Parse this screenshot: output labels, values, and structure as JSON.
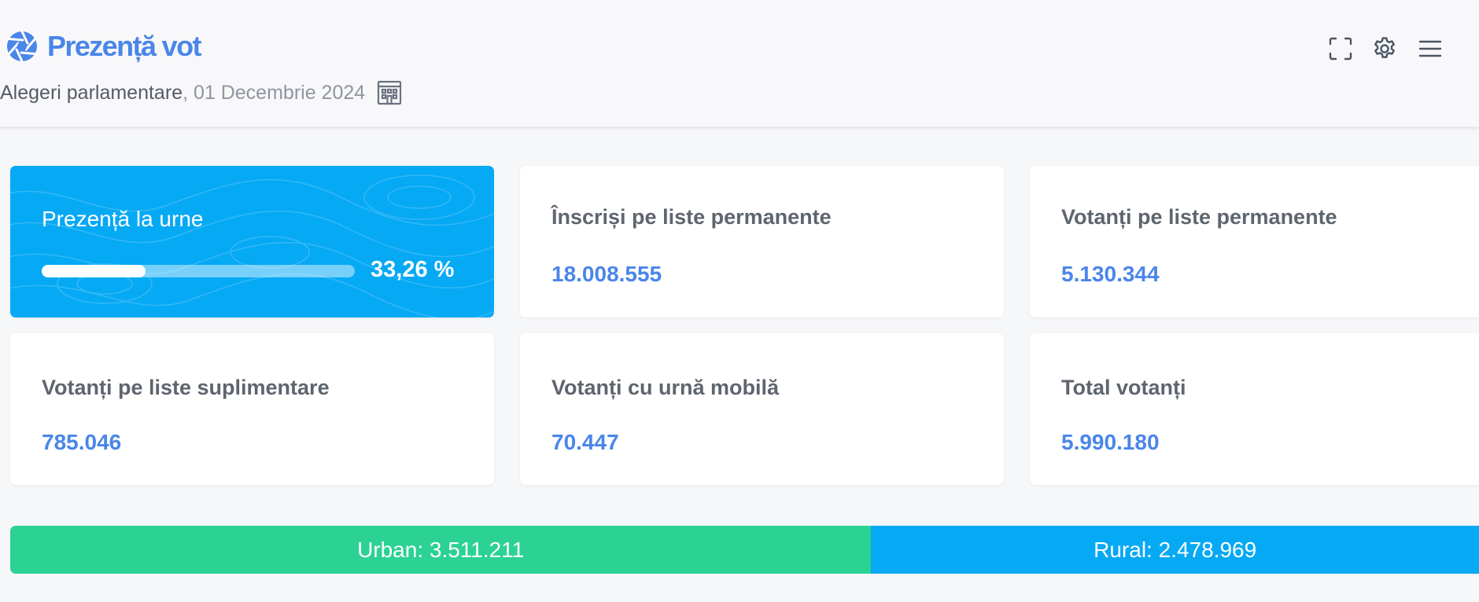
{
  "header": {
    "title": "Prezență vot",
    "subtitle_main": "Alegeri parlamentare",
    "subtitle_date": ", 01 Decembrie 2024",
    "icons": {
      "logo": "aperture-logo-icon",
      "building": "building-icon",
      "fullscreen": "fullscreen-icon",
      "settings": "gear-icon",
      "menu": "hamburger-menu-icon"
    }
  },
  "turnout": {
    "label": "Prezență la urne",
    "percent_text": "33,26 %",
    "percent_value": 33.26
  },
  "stats": {
    "registered_permanent": {
      "label": "Înscriși pe liste permanente",
      "value": "18.008.555"
    },
    "voters_permanent": {
      "label": "Votanți pe liste permanente",
      "value": "5.130.344"
    },
    "voters_supplementary": {
      "label": "Votanți pe liste suplimentare",
      "value": "785.046"
    },
    "voters_mobile": {
      "label": "Votanți cu urnă mobilă",
      "value": "70.447"
    },
    "voters_total": {
      "label": "Total votanți",
      "value": "5.990.180"
    }
  },
  "split": {
    "urban_label": "Urban: 3.511.211",
    "urban_value": 3511211,
    "rural_label": "Rural: 2.478.969",
    "rural_value": 2478969
  },
  "colors": {
    "accent": "#4a86e8",
    "turnout_card": "#06a9f4",
    "urban": "#2bd294",
    "rural": "#06a9f4"
  }
}
